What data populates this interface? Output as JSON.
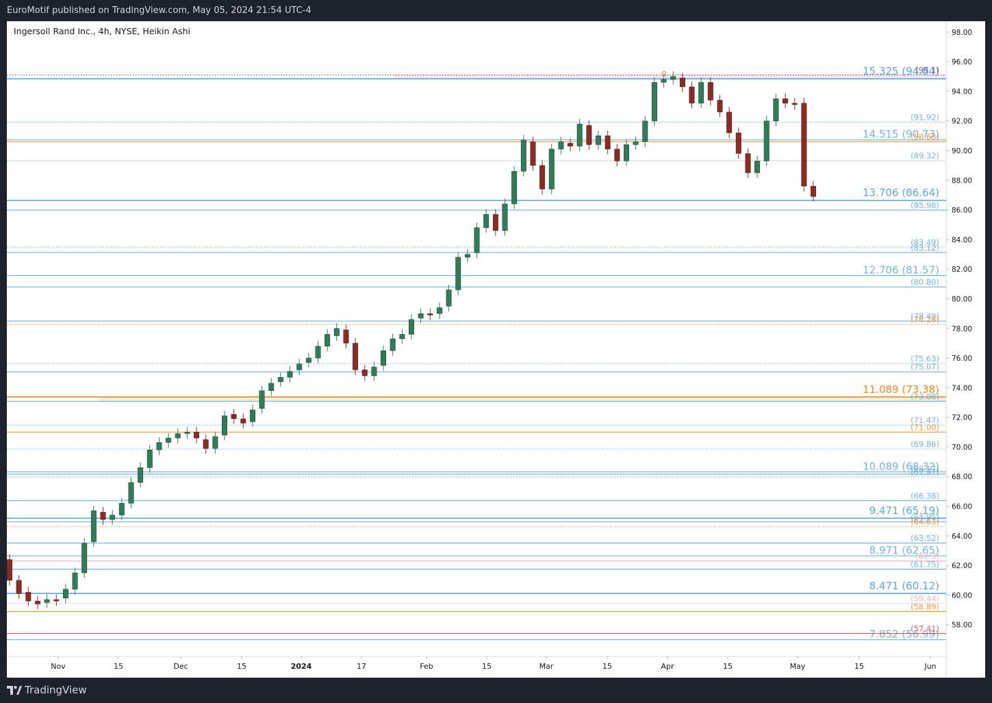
{
  "header": {
    "published": "EuroMotif published on TradingView.com, May 05, 2024 21:54 UTC-4"
  },
  "chart_title": "Ingersoll Rand Inc., 4h, NYSE, Heikin Ashi",
  "branding": {
    "logo_text": "TradingView",
    "icon": "tradingview-logo-icon"
  },
  "colors": {
    "up_candle": "#2e7d58",
    "down_candle": "#8d2a23",
    "blue_line": "#5ea6de",
    "orange_line": "#f2891d",
    "pink_line": "#f4a7b2",
    "red_line": "#e64553",
    "purple_line": "#6b3a8c",
    "dark_frame": "#1e222d"
  },
  "chart_data": {
    "type": "candlestick",
    "title": "Ingersoll Rand Inc., 4h, NYSE, Heikin Ashi",
    "ylim": [
      56.0,
      98.5
    ],
    "y_ticks": [
      "58.00",
      "60.00",
      "62.00",
      "64.00",
      "66.00",
      "68.00",
      "70.00",
      "72.00",
      "74.00",
      "76.00",
      "78.00",
      "80.00",
      "82.00",
      "84.00",
      "86.00",
      "88.00",
      "90.00",
      "92.00",
      "94.00",
      "96.00",
      "98.00"
    ],
    "x_ticks": [
      "Nov",
      "15",
      "Dec",
      "15",
      "2024",
      "17",
      "Feb",
      "15",
      "Mar",
      "15",
      "Apr",
      "15",
      "May",
      "15",
      "Jun"
    ],
    "x_tick_dates": [
      "2023-11-01",
      "2023-11-15",
      "2023-12-01",
      "2023-12-15",
      "2024-01-01",
      "2024-01-17",
      "2024-02-01",
      "2024-02-15",
      "2024-03-01",
      "2024-03-15",
      "2024-04-01",
      "2024-04-15",
      "2024-05-01",
      "2024-05-15",
      "2024-06-01"
    ],
    "series": [
      {
        "close": [
          [
            62.4,
            61.0
          ],
          [
            61.0,
            60.1
          ],
          [
            60.2,
            59.6
          ],
          [
            59.6,
            59.4
          ],
          [
            59.5,
            59.7
          ],
          [
            59.7,
            59.6
          ],
          [
            59.8,
            60.4
          ],
          [
            60.4,
            61.5
          ],
          [
            61.5,
            63.5
          ],
          [
            63.6,
            65.7
          ],
          [
            65.6,
            65.1
          ],
          [
            65.1,
            65.4
          ],
          [
            65.4,
            66.2
          ],
          [
            66.2,
            67.6
          ],
          [
            67.6,
            68.6
          ],
          [
            68.6,
            69.8
          ],
          [
            69.8,
            70.3
          ],
          [
            70.3,
            70.6
          ],
          [
            70.6,
            70.9
          ],
          [
            70.9,
            71.0
          ],
          [
            71.0,
            70.6
          ],
          [
            70.5,
            69.9
          ],
          [
            69.9,
            70.7
          ],
          [
            70.8,
            72.1
          ],
          [
            72.2,
            71.9
          ],
          [
            71.9,
            71.6
          ],
          [
            71.7,
            72.5
          ],
          [
            72.6,
            73.8
          ],
          [
            73.8,
            74.3
          ],
          [
            74.4,
            74.7
          ],
          [
            74.7,
            75.1
          ],
          [
            75.2,
            75.6
          ],
          [
            75.7,
            76.0
          ],
          [
            76.0,
            76.8
          ],
          [
            76.8,
            77.6
          ],
          [
            77.5,
            78.0
          ],
          [
            77.9,
            77.0
          ],
          [
            77.0,
            75.2
          ],
          [
            75.2,
            74.8
          ],
          [
            74.8,
            75.4
          ],
          [
            75.5,
            76.5
          ],
          [
            76.5,
            77.3
          ],
          [
            77.3,
            77.6
          ],
          [
            77.6,
            78.6
          ],
          [
            78.7,
            79.0
          ],
          [
            79.0,
            78.9
          ],
          [
            79.0,
            79.4
          ],
          [
            79.5,
            80.6
          ],
          [
            80.6,
            82.8
          ],
          [
            82.8,
            83.0
          ],
          [
            83.1,
            84.8
          ],
          [
            84.8,
            85.7
          ],
          [
            85.7,
            84.6
          ],
          [
            84.6,
            86.4
          ],
          [
            86.4,
            88.6
          ],
          [
            88.6,
            90.7
          ],
          [
            90.6,
            89.0
          ],
          [
            89.0,
            87.4
          ],
          [
            87.4,
            90.1
          ],
          [
            90.1,
            90.6
          ],
          [
            90.5,
            90.3
          ],
          [
            90.3,
            91.8
          ],
          [
            91.7,
            90.4
          ],
          [
            90.4,
            91.0
          ],
          [
            91.0,
            90.1
          ],
          [
            90.1,
            89.3
          ],
          [
            89.3,
            90.4
          ],
          [
            90.4,
            90.6
          ],
          [
            90.6,
            92.0
          ],
          [
            92.0,
            94.6
          ],
          [
            94.6,
            94.8
          ],
          [
            94.8,
            95.0
          ],
          [
            94.9,
            94.3
          ],
          [
            94.3,
            93.2
          ],
          [
            93.2,
            94.6
          ],
          [
            94.6,
            93.4
          ],
          [
            93.4,
            92.6
          ],
          [
            92.6,
            91.2
          ],
          [
            91.2,
            89.8
          ],
          [
            89.8,
            88.5
          ],
          [
            88.5,
            89.3
          ],
          [
            89.3,
            92.0
          ],
          [
            92.0,
            93.5
          ],
          [
            93.5,
            93.2
          ],
          [
            93.2,
            93.1
          ],
          [
            93.2,
            87.6
          ],
          [
            87.6,
            86.9
          ]
        ]
      }
    ],
    "levels": [
      {
        "label": "15.325 (94.84)",
        "value": 94.84,
        "color": "blue",
        "style": "solid",
        "emphasis": true
      },
      {
        "label": "(95.1)",
        "value": 95.1,
        "color": "purple",
        "style": "dotted",
        "emphasis": false
      },
      {
        "label": "(91.92)",
        "value": 91.92,
        "color": "blue",
        "style": "dotted",
        "emphasis": false
      },
      {
        "label": "14.515 (90.73)",
        "value": 90.73,
        "color": "blue",
        "style": "solid",
        "emphasis": false
      },
      {
        "label": "(90.60)",
        "value": 90.6,
        "color": "orange",
        "style": "solid",
        "emphasis": false
      },
      {
        "label": "(89.32)",
        "value": 89.32,
        "color": "blue",
        "style": "dotted",
        "emphasis": false
      },
      {
        "label": "13.706 (86.64)",
        "value": 86.64,
        "color": "blue",
        "style": "solid",
        "emphasis": true
      },
      {
        "label": "(85.98)",
        "value": 85.98,
        "color": "blue",
        "style": "solid",
        "emphasis": false
      },
      {
        "label": "(83.49)",
        "value": 83.49,
        "color": "blue",
        "style": "dotted",
        "emphasis": false
      },
      {
        "label": "(83.12)",
        "value": 83.12,
        "color": "blue",
        "style": "solid",
        "emphasis": false
      },
      {
        "label": "12.706 (81.57)",
        "value": 81.57,
        "color": "blue",
        "style": "solid",
        "emphasis": false
      },
      {
        "label": "(80.80)",
        "value": 80.8,
        "color": "blue",
        "style": "solid",
        "emphasis": false
      },
      {
        "label": "(78.49)",
        "value": 78.49,
        "color": "blue",
        "style": "solid",
        "emphasis": false
      },
      {
        "label": "(78.28)",
        "value": 78.28,
        "color": "orange",
        "style": "dotted",
        "emphasis": false
      },
      {
        "label": "(75.63)",
        "value": 75.63,
        "color": "blue",
        "style": "dotted",
        "emphasis": false
      },
      {
        "label": "(75.07)",
        "value": 75.07,
        "color": "blue",
        "style": "solid",
        "emphasis": false
      },
      {
        "label": "11.089 (73.38)",
        "value": 73.38,
        "color": "orange",
        "style": "solid",
        "emphasis": true
      },
      {
        "label": "(73.08)",
        "value": 73.08,
        "color": "blue",
        "style": "solid",
        "emphasis": false
      },
      {
        "label": "(71.47)",
        "value": 71.47,
        "color": "blue",
        "style": "dotted",
        "emphasis": false
      },
      {
        "label": "(71.00)",
        "value": 71.0,
        "color": "orange",
        "style": "solid",
        "emphasis": false
      },
      {
        "label": "(69.86)",
        "value": 69.86,
        "color": "blue",
        "style": "dotted",
        "emphasis": false
      },
      {
        "label": "10.089 (68.32)",
        "value": 68.32,
        "color": "blue",
        "style": "solid",
        "emphasis": false
      },
      {
        "label": "(68.17)",
        "value": 68.17,
        "color": "blue",
        "style": "solid",
        "emphasis": false
      },
      {
        "label": "(67.97)",
        "value": 67.97,
        "color": "blue",
        "style": "dotted",
        "emphasis": false
      },
      {
        "label": "(66.38)",
        "value": 66.38,
        "color": "blue",
        "style": "solid",
        "emphasis": false
      },
      {
        "label": "9.471 (65.19)",
        "value": 65.19,
        "color": "blue",
        "style": "solid",
        "emphasis": true
      },
      {
        "label": "(64.95)",
        "value": 64.95,
        "color": "blue",
        "style": "solid",
        "emphasis": false
      },
      {
        "label": "(64.63)",
        "value": 64.63,
        "color": "orange",
        "style": "dotted",
        "emphasis": false
      },
      {
        "label": "(63.52)",
        "value": 63.52,
        "color": "blue",
        "style": "solid",
        "emphasis": false
      },
      {
        "label": "8.971 (62.65)",
        "value": 62.65,
        "color": "blue",
        "style": "solid",
        "emphasis": false
      },
      {
        "label": "(62.3)",
        "value": 62.3,
        "color": "pink",
        "style": "solid",
        "emphasis": false
      },
      {
        "label": "(61.75)",
        "value": 61.75,
        "color": "blue",
        "style": "solid",
        "emphasis": false
      },
      {
        "label": "8.471 (60.12)",
        "value": 60.12,
        "color": "blue",
        "style": "solid",
        "emphasis": true
      },
      {
        "label": "(59.44)",
        "value": 59.44,
        "color": "pink",
        "style": "dotted",
        "emphasis": false
      },
      {
        "label": "(58.89)",
        "value": 58.89,
        "color": "orange",
        "style": "solid",
        "emphasis": false
      },
      {
        "label": "7.852 (56.99)",
        "value": 56.99,
        "color": "blue",
        "style": "solid",
        "emphasis": false
      },
      {
        "label": "(57.41)",
        "value": 57.41,
        "color": "red",
        "style": "solid",
        "emphasis": false
      }
    ],
    "marker": {
      "label": "0",
      "value": 95.1
    }
  }
}
